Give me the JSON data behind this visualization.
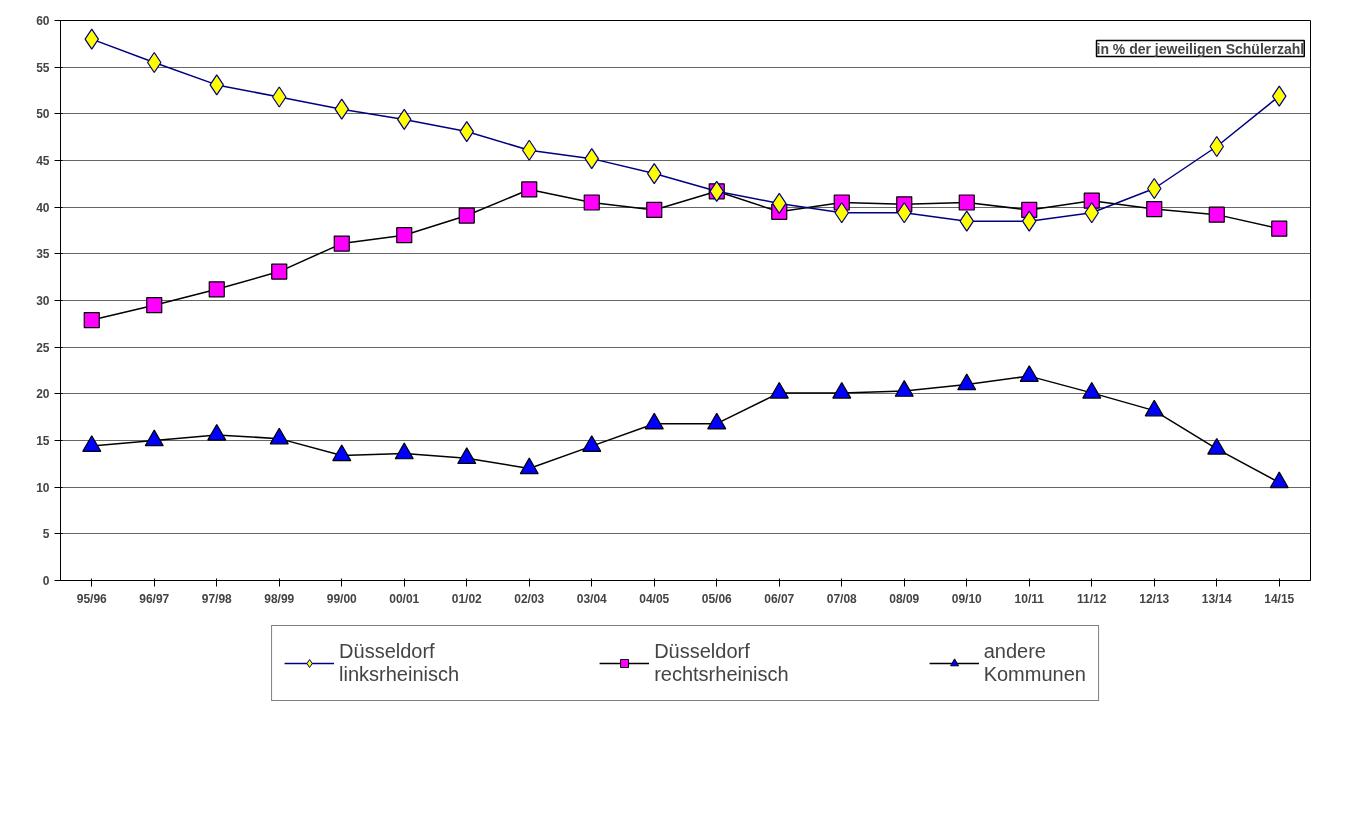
{
  "chart_data": {
    "type": "line",
    "categories": [
      "95/96",
      "96/97",
      "97/98",
      "98/99",
      "99/00",
      "00/01",
      "01/02",
      "02/03",
      "03/04",
      "04/05",
      "05/06",
      "06/07",
      "07/08",
      "08/09",
      "09/10",
      "10/11",
      "11/12",
      "12/13",
      "13/14",
      "14/15"
    ],
    "series": [
      {
        "name": "Düsseldorf linksrheinisch",
        "color": "#ffff00",
        "marker": "diamond",
        "values": [
          58,
          55.5,
          53.1,
          51.8,
          50.5,
          49.4,
          48.1,
          46.1,
          45.2,
          43.6,
          41.7,
          40.4,
          39.4,
          39.4,
          38.5,
          38.5,
          39.4,
          42.0,
          46.5,
          51.9
        ]
      },
      {
        "name": "Düsseldorf rechtsrheinisch",
        "color": "#ff00ff",
        "marker": "square",
        "values": [
          27.9,
          29.5,
          31.2,
          33.1,
          36.1,
          37.0,
          39.1,
          41.9,
          40.5,
          39.7,
          41.7,
          39.5,
          40.5,
          40.3,
          40.5,
          39.7,
          40.7,
          39.8,
          39.2,
          37.7
        ]
      },
      {
        "name": "andere Kommunen",
        "color": "#0000ff",
        "marker": "triangle",
        "values": [
          14.4,
          15.0,
          15.6,
          15.2,
          13.4,
          13.6,
          13.1,
          12.0,
          14.4,
          16.8,
          16.8,
          20.1,
          20.1,
          20.3,
          21.0,
          21.9,
          20.1,
          18.2,
          14.1,
          10.5
        ]
      }
    ],
    "ylim": [
      0,
      60
    ],
    "yticks": [
      0,
      5,
      10,
      15,
      20,
      25,
      30,
      35,
      40,
      45,
      50,
      55,
      60
    ],
    "grid": "y",
    "legend": "bottom",
    "annotations": [
      "in % der jeweiligen Schülerzahl"
    ]
  }
}
